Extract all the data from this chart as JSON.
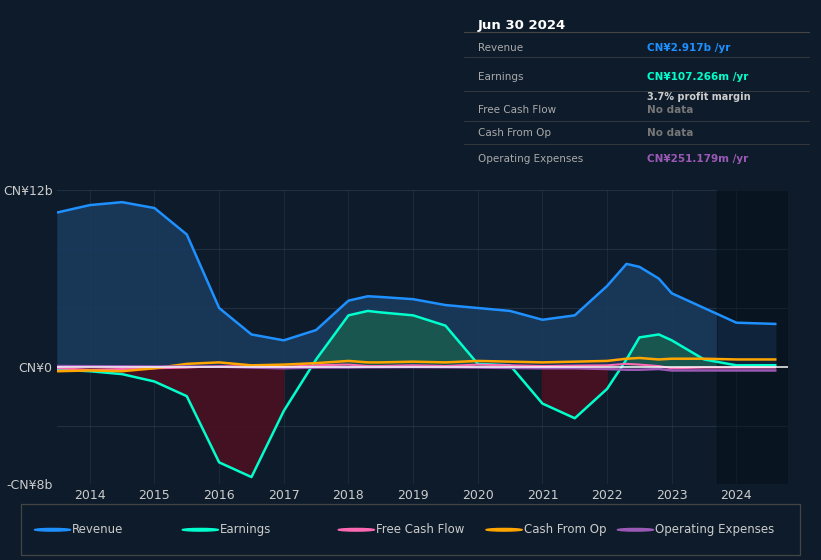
{
  "background_color": "#0d1b2a",
  "ylim": [
    -8000000000.0,
    12000000000.0
  ],
  "xlim": [
    2013.5,
    2024.8
  ],
  "ytick_labels": [
    "-CN¥8b",
    "CN¥0",
    "CN¥12b"
  ],
  "xticks": [
    2014,
    2015,
    2016,
    2017,
    2018,
    2019,
    2020,
    2021,
    2022,
    2023,
    2024
  ],
  "years": [
    2013.5,
    2014,
    2014.5,
    2015,
    2015.5,
    2016,
    2016.5,
    2017,
    2017.5,
    2018,
    2018.3,
    2018.5,
    2019,
    2019.5,
    2020,
    2020.5,
    2021,
    2021.5,
    2022,
    2022.3,
    2022.5,
    2022.8,
    2023,
    2023.5,
    2024,
    2024.6
  ],
  "revenue": [
    10500000000.0,
    11000000000.0,
    11200000000.0,
    10800000000.0,
    9000000000.0,
    4000000000.0,
    2200000000.0,
    1800000000.0,
    2500000000.0,
    4500000000.0,
    4800000000.0,
    4750000000.0,
    4600000000.0,
    4200000000.0,
    4000000000.0,
    3800000000.0,
    3200000000.0,
    3500000000.0,
    5500000000.0,
    7000000000.0,
    6800000000.0,
    6000000000.0,
    5000000000.0,
    4000000000.0,
    3000000000.0,
    2917000000.0
  ],
  "earnings": [
    -200000000.0,
    -300000000.0,
    -500000000.0,
    -1000000000.0,
    -2000000000.0,
    -6500000000.0,
    -7500000000.0,
    -3000000000.0,
    500000000.0,
    3500000000.0,
    3800000000.0,
    3700000000.0,
    3500000000.0,
    2800000000.0,
    200000000.0,
    100000000.0,
    -2500000000.0,
    -3500000000.0,
    -1500000000.0,
    500000000.0,
    2000000000.0,
    2200000000.0,
    1800000000.0,
    500000000.0,
    100000000.0,
    107000000.0
  ],
  "free_cash_flow": [
    -100000000.0,
    -200000000.0,
    -150000000.0,
    -100000000.0,
    -50000000.0,
    50000000.0,
    20000000.0,
    0.0,
    100000000.0,
    150000000.0,
    50000000.0,
    50000000.0,
    100000000.0,
    50000000.0,
    150000000.0,
    100000000.0,
    50000000.0,
    80000000.0,
    100000000.0,
    200000000.0,
    150000000.0,
    50000000.0,
    -100000000.0,
    -50000000.0,
    -50000000.0,
    -50000000.0
  ],
  "cash_from_op": [
    -300000000.0,
    -250000000.0,
    -300000000.0,
    -100000000.0,
    200000000.0,
    300000000.0,
    100000000.0,
    150000000.0,
    250000000.0,
    400000000.0,
    300000000.0,
    300000000.0,
    350000000.0,
    300000000.0,
    400000000.0,
    350000000.0,
    300000000.0,
    350000000.0,
    400000000.0,
    550000000.0,
    600000000.0,
    500000000.0,
    550000000.0,
    550000000.0,
    500000000.0,
    500000000.0
  ],
  "op_expenses": [
    50000000.0,
    40000000.0,
    30000000.0,
    20000000.0,
    20000000.0,
    10000000.0,
    -50000000.0,
    -100000000.0,
    -50000000.0,
    -50000000.0,
    -30000000.0,
    -30000000.0,
    -20000000.0,
    -30000000.0,
    -50000000.0,
    -80000000.0,
    -100000000.0,
    -100000000.0,
    -150000000.0,
    -200000000.0,
    -200000000.0,
    -150000000.0,
    -250000000.0,
    -250000000.0,
    -250000000.0,
    -251000000.0
  ],
  "revenue_color": "#1e90ff",
  "revenue_fill": "#1a3a5c",
  "earnings_color": "#00ffcc",
  "earnings_fill_pos": "#1a5c50",
  "earnings_fill_neg": "#4a1020",
  "fcf_color": "#ff69b4",
  "cfo_color": "#ffa500",
  "opex_color": "#9b59b6",
  "legend_items": [
    "Revenue",
    "Earnings",
    "Free Cash Flow",
    "Cash From Op",
    "Operating Expenses"
  ],
  "legend_colors": [
    "#1e90ff",
    "#00ffcc",
    "#ff69b4",
    "#ffa500",
    "#9b59b6"
  ],
  "grid_color": "#2a3a4a",
  "zero_line_color": "#ffffff",
  "text_color": "#cccccc",
  "title_color": "#ffffff",
  "info_title": "Jun 30 2024",
  "info_rows": [
    {
      "label": "Revenue",
      "value": "CN¥2.917b /yr",
      "vcolor": "#1e90ff",
      "extra": null
    },
    {
      "label": "Earnings",
      "value": "CN¥107.266m /yr",
      "vcolor": "#00ffcc",
      "extra": "3.7% profit margin"
    },
    {
      "label": "Free Cash Flow",
      "value": "No data",
      "vcolor": "#777777",
      "extra": null
    },
    {
      "label": "Cash From Op",
      "value": "No data",
      "vcolor": "#777777",
      "extra": null
    },
    {
      "label": "Operating Expenses",
      "value": "CN¥251.179m /yr",
      "vcolor": "#9b59b6",
      "extra": null
    }
  ]
}
